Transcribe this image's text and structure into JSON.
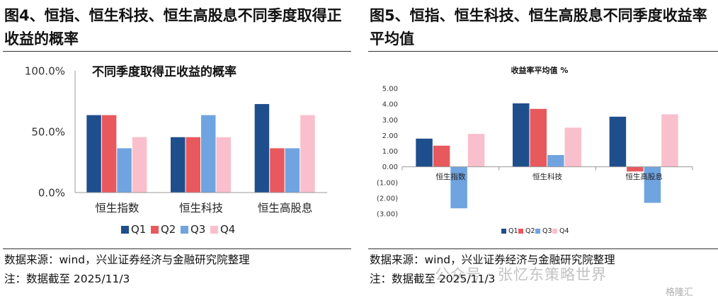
{
  "figures": [
    {
      "figure_title": "图4、恒指、恒生科技、恒生高股息不同季度取得正收益的概率",
      "source": "数据来源：wind，兴业证券经济与金融研究院整理",
      "note": "注：数据截至 2025/11/3"
    },
    {
      "figure_title": "图5、恒指、恒生科技、恒生高股息不同季度收益率平均值",
      "source": "数据来源：wind，兴业证券经济与金融研究院整理",
      "note": "注：数据截至 2025/11/3"
    }
  ],
  "watermark": "公众号 · 张忆东策略世界",
  "watermark_logo": "格隆汇",
  "chart_data": [
    {
      "type": "bar",
      "title": "不同季度取得正收益的概率",
      "categories": [
        "恒生指数",
        "恒生科技",
        "恒生高股息"
      ],
      "series": [
        {
          "name": "Q1",
          "values": [
            63.6,
            45.5,
            72.7
          ],
          "color": "#1f4e8c"
        },
        {
          "name": "Q2",
          "values": [
            63.6,
            45.5,
            36.4
          ],
          "color": "#e8595e"
        },
        {
          "name": "Q3",
          "values": [
            36.4,
            63.6,
            36.4
          ],
          "color": "#6fa4e0"
        },
        {
          "name": "Q4",
          "values": [
            45.5,
            45.5,
            63.6
          ],
          "color": "#f9bfcc"
        }
      ],
      "ylim": [
        0,
        100
      ],
      "yticks": [
        "0.0%",
        "50.0%",
        "100.0%"
      ],
      "legend_position": "bottom",
      "grid": false
    },
    {
      "type": "bar",
      "title": "收益率平均值 %",
      "categories": [
        "恒生指数",
        "恒生科技",
        "恒生高股息"
      ],
      "series": [
        {
          "name": "Q1",
          "values": [
            1.8,
            4.05,
            3.2
          ],
          "color": "#1f4e8c"
        },
        {
          "name": "Q2",
          "values": [
            1.35,
            3.7,
            -0.3
          ],
          "color": "#e8595e"
        },
        {
          "name": "Q3",
          "values": [
            -2.65,
            0.75,
            -2.3
          ],
          "color": "#6fa4e0"
        },
        {
          "name": "Q4",
          "values": [
            2.1,
            2.5,
            3.35
          ],
          "color": "#f9bfcc"
        }
      ],
      "ylim": [
        -3,
        5
      ],
      "yticks": [
        "(3.00)",
        "(2.00)",
        "(1.00)",
        "0.00",
        "1.00",
        "2.00",
        "3.00",
        "4.00",
        "5.00"
      ],
      "legend_position": "bottom",
      "grid": false
    }
  ]
}
